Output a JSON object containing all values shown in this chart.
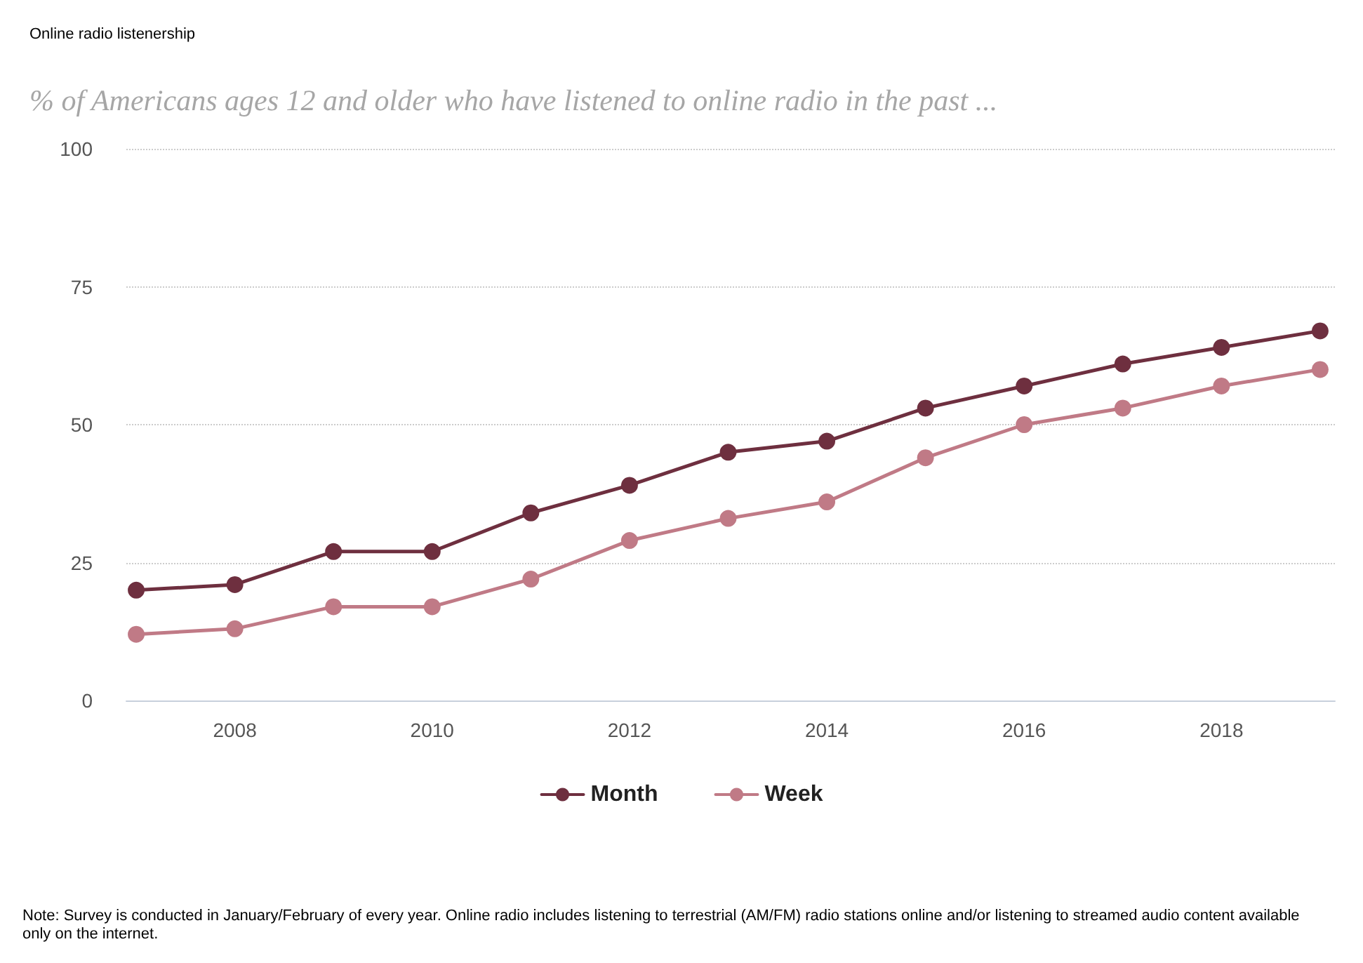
{
  "chart_data": {
    "type": "line",
    "title": "Online radio listenership",
    "subtitle": "% of Americans ages 12 and older who have listened to online radio in the past ...",
    "x": [
      2007,
      2008,
      2009,
      2010,
      2011,
      2012,
      2013,
      2014,
      2015,
      2016,
      2017,
      2018,
      2019
    ],
    "series": [
      {
        "name": "Month",
        "color": "#6e2f3f",
        "values": [
          20,
          21,
          27,
          27,
          34,
          39,
          45,
          47,
          53,
          57,
          61,
          64,
          67
        ]
      },
      {
        "name": "Week",
        "color": "#c07a86",
        "values": [
          12,
          13,
          17,
          17,
          22,
          29,
          33,
          36,
          44,
          50,
          53,
          57,
          60
        ]
      }
    ],
    "xlim": [
      2006.9,
      2019.15
    ],
    "xticks": [
      2008,
      2010,
      2012,
      2014,
      2016,
      2018
    ],
    "ylim": [
      0,
      100
    ],
    "yticks": [
      0,
      25,
      50,
      75,
      100
    ],
    "grid": "y",
    "legend": "bottom",
    "marker": "circle",
    "line_style": "solid",
    "annotations": [
      "Note: Survey is conducted in January/February of every year. Online radio includes listening to terrestrial (AM/FM) radio stations online and/or listening to streamed audio content available only on the internet."
    ]
  }
}
